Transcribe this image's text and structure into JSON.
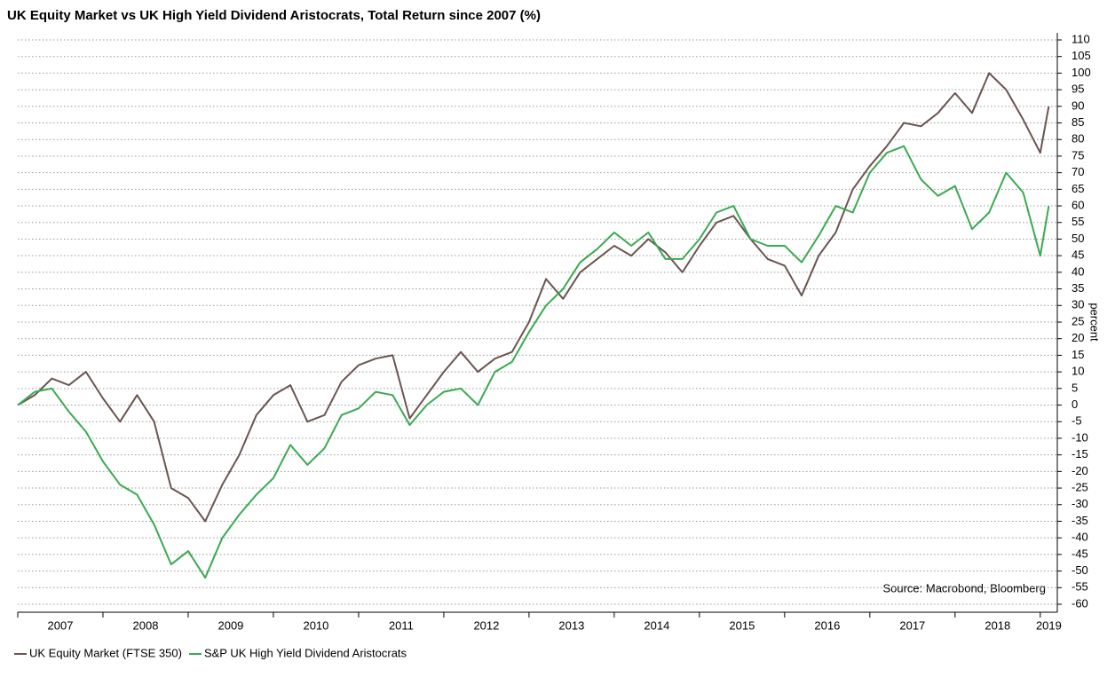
{
  "chart_data": {
    "type": "line",
    "title": "UK Equity Market vs UK High Yield Dividend Aristocrats, Total Return since 2007 (%)",
    "y_label": "percent",
    "annotation": "Source: Macrobond, Bloomberg",
    "x": [
      2007,
      2007.2,
      2007.4,
      2007.6,
      2007.8,
      2008,
      2008.2,
      2008.4,
      2008.6,
      2008.8,
      2009,
      2009.2,
      2009.4,
      2009.6,
      2009.8,
      2010,
      2010.2,
      2010.4,
      2010.6,
      2010.8,
      2011,
      2011.2,
      2011.4,
      2011.6,
      2011.8,
      2012,
      2012.2,
      2012.4,
      2012.6,
      2012.8,
      2013,
      2013.2,
      2013.4,
      2013.6,
      2013.8,
      2014,
      2014.2,
      2014.4,
      2014.6,
      2014.8,
      2015,
      2015.2,
      2015.4,
      2015.6,
      2015.8,
      2016,
      2016.2,
      2016.4,
      2016.6,
      2016.8,
      2017,
      2017.2,
      2017.4,
      2017.6,
      2017.8,
      2018,
      2018.2,
      2018.4,
      2018.6,
      2018.8,
      2019,
      2019.1
    ],
    "series": [
      {
        "name": "UK Equity Market (FTSE 350)",
        "color": "#6b5550",
        "values": [
          0,
          3,
          8,
          6,
          10,
          2,
          -5,
          3,
          -5,
          -25,
          -28,
          -35,
          -24,
          -15,
          -3,
          3,
          6,
          -5,
          -3,
          7,
          12,
          14,
          15,
          -4,
          3,
          10,
          16,
          10,
          14,
          16,
          25,
          38,
          32,
          40,
          44,
          48,
          45,
          50,
          46,
          40,
          48,
          55,
          57,
          50,
          44,
          42,
          33,
          45,
          52,
          65,
          72,
          78,
          85,
          84,
          88,
          94,
          88,
          100,
          95,
          86,
          76,
          90
        ]
      },
      {
        "name": "S&P UK High Yield Dividend Aristocrats",
        "color": "#3aaa50",
        "values": [
          0,
          4,
          5,
          -2,
          -8,
          -17,
          -24,
          -27,
          -36,
          -48,
          -44,
          -52,
          -40,
          -33,
          -27,
          -22,
          -12,
          -18,
          -13,
          -3,
          -1,
          4,
          3,
          -6,
          0,
          4,
          5,
          0,
          10,
          13,
          22,
          30,
          35,
          43,
          47,
          52,
          48,
          52,
          44,
          44,
          50,
          58,
          60,
          50,
          48,
          48,
          43,
          51,
          60,
          58,
          70,
          76,
          78,
          68,
          63,
          66,
          53,
          58,
          70,
          64,
          45,
          60
        ]
      }
    ],
    "xlim": [
      2007,
      2019.2
    ],
    "xticks": [
      2007,
      2008,
      2009,
      2010,
      2011,
      2012,
      2013,
      2014,
      2015,
      2016,
      2017,
      2018,
      2019
    ],
    "ylim": [
      -60,
      110
    ],
    "yticks": [
      -60,
      -55,
      -50,
      -45,
      -40,
      -35,
      -30,
      -25,
      -20,
      -15,
      -10,
      -5,
      0,
      5,
      10,
      15,
      20,
      25,
      30,
      35,
      40,
      45,
      50,
      55,
      60,
      65,
      70,
      75,
      80,
      85,
      90,
      95,
      100,
      105,
      110
    ],
    "grid": true
  }
}
